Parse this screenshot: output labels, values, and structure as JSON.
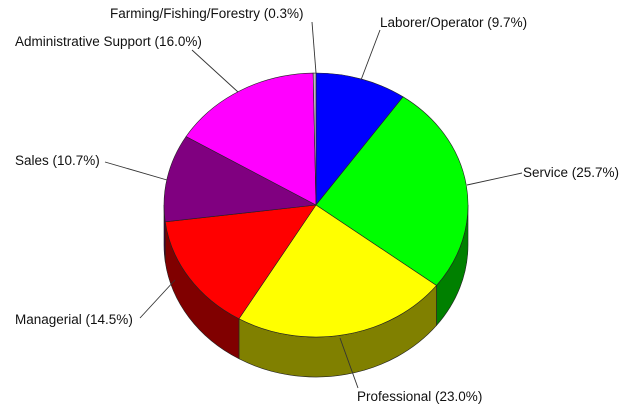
{
  "chart_data": {
    "type": "pie",
    "title": "",
    "slices": [
      {
        "name": "Laborer/Operator",
        "value": 9.7,
        "label": "Laborer/Operator (9.7%)",
        "color": "#0000ff",
        "side_color": "#000080"
      },
      {
        "name": "Service",
        "value": 25.7,
        "label": "Service (25.7%)",
        "color": "#00ff00",
        "side_color": "#008000"
      },
      {
        "name": "Professional",
        "value": 23.0,
        "label": "Professional (23.0%)",
        "color": "#ffff00",
        "side_color": "#808000"
      },
      {
        "name": "Managerial",
        "value": 14.5,
        "label": "Managerial (14.5%)",
        "color": "#ff0000",
        "side_color": "#800000"
      },
      {
        "name": "Sales",
        "value": 10.7,
        "label": "Sales (10.7%)",
        "color": "#800080",
        "side_color": "#400040"
      },
      {
        "name": "Administrative Support",
        "value": 16.0,
        "label": "Administrative Support (16.0%)",
        "color": "#ff00ff",
        "side_color": "#800080"
      },
      {
        "name": "Farming/Fishing/Forestry",
        "value": 0.3,
        "label": "Farming/Fishing/Forestry (0.3%)",
        "color": "#c0c0c0",
        "side_color": "#808080"
      }
    ],
    "style": "3d",
    "legend": "none",
    "labels": "outside-with-leader-lines"
  }
}
